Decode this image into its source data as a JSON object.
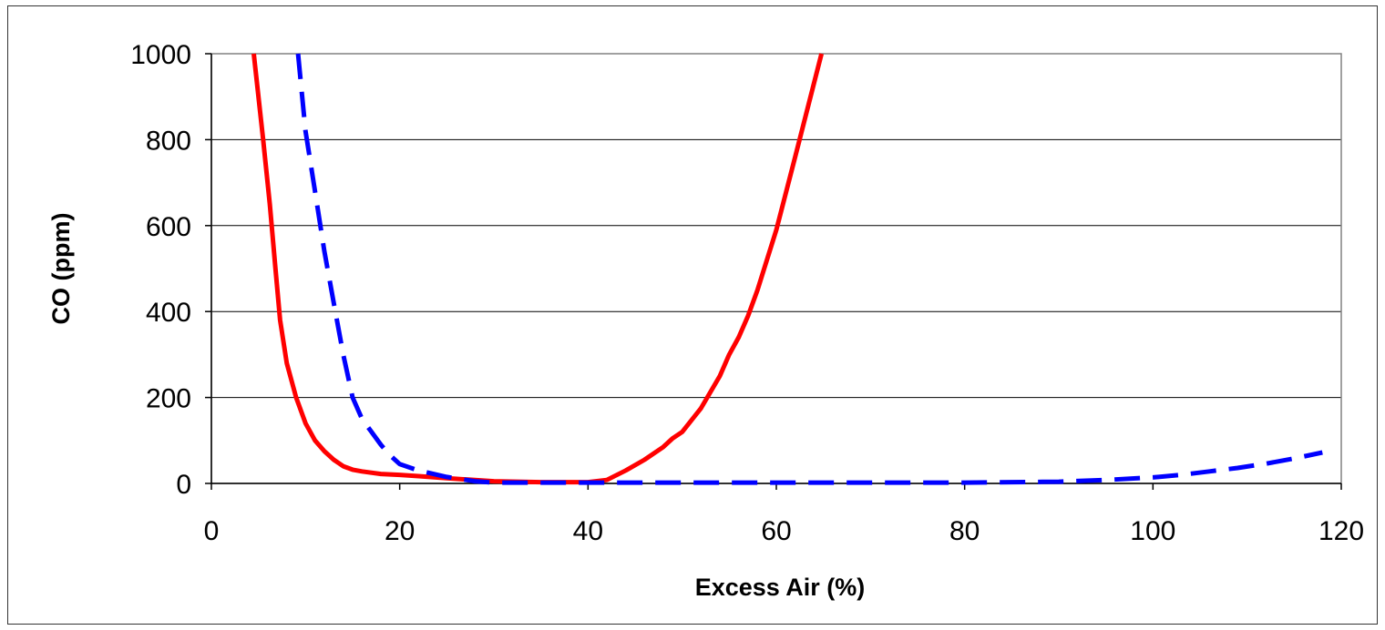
{
  "chart_data": {
    "type": "line",
    "title": "",
    "xlabel": "Excess Air (%)",
    "ylabel": "CO (ppm)",
    "xlim": [
      0,
      120
    ],
    "ylim": [
      0,
      1000
    ],
    "xticks": [
      0,
      20,
      40,
      60,
      80,
      100,
      120
    ],
    "yticks": [
      0,
      200,
      400,
      600,
      800,
      1000
    ],
    "grid": "horizontal",
    "legend": "none",
    "series": [
      {
        "color": "#ff0000",
        "style": "solid",
        "x": [
          4.5,
          5.5,
          6.2,
          6.8,
          7.3,
          8.0,
          9.0,
          10.0,
          11.0,
          12.0,
          13.0,
          14.0,
          15.0,
          16.0,
          18.0,
          20.0,
          22.0,
          25.0,
          28.0,
          30.0,
          35.0,
          40.0,
          42.0,
          44.0,
          46.0,
          48.0,
          49.0,
          50.0,
          52.0,
          54.0,
          55.0,
          56.0,
          57.0,
          58.0,
          60.0,
          62.0,
          64.8
        ],
        "y": [
          1000,
          800,
          650,
          500,
          380,
          280,
          200,
          140,
          100,
          75,
          55,
          40,
          32,
          28,
          22,
          20,
          17,
          12,
          8,
          5,
          3,
          3,
          8,
          30,
          55,
          85,
          105,
          120,
          175,
          250,
          300,
          340,
          390,
          450,
          590,
          760,
          1000
        ]
      },
      {
        "color": "#0000ff",
        "style": "dashed",
        "x": [
          9.2,
          10.0,
          11.0,
          12.0,
          13.0,
          14.0,
          15.0,
          16.0,
          17.0,
          18.0,
          19.0,
          20.0,
          22.0,
          25.0,
          28.0,
          30.0,
          35.0,
          40.0,
          45.0,
          50.0,
          60.0,
          70.0,
          80.0,
          85.0,
          90.0,
          95.0,
          100.0,
          103.0,
          106.0,
          109.0,
          112.0,
          115.0,
          118.0
        ],
        "y": [
          1000,
          820,
          680,
          540,
          420,
          300,
          200,
          150,
          120,
          90,
          65,
          45,
          30,
          15,
          5,
          2,
          2,
          2,
          2,
          2,
          2,
          2,
          2,
          3,
          4,
          8,
          14,
          20,
          28,
          36,
          46,
          58,
          72
        ]
      }
    ]
  }
}
